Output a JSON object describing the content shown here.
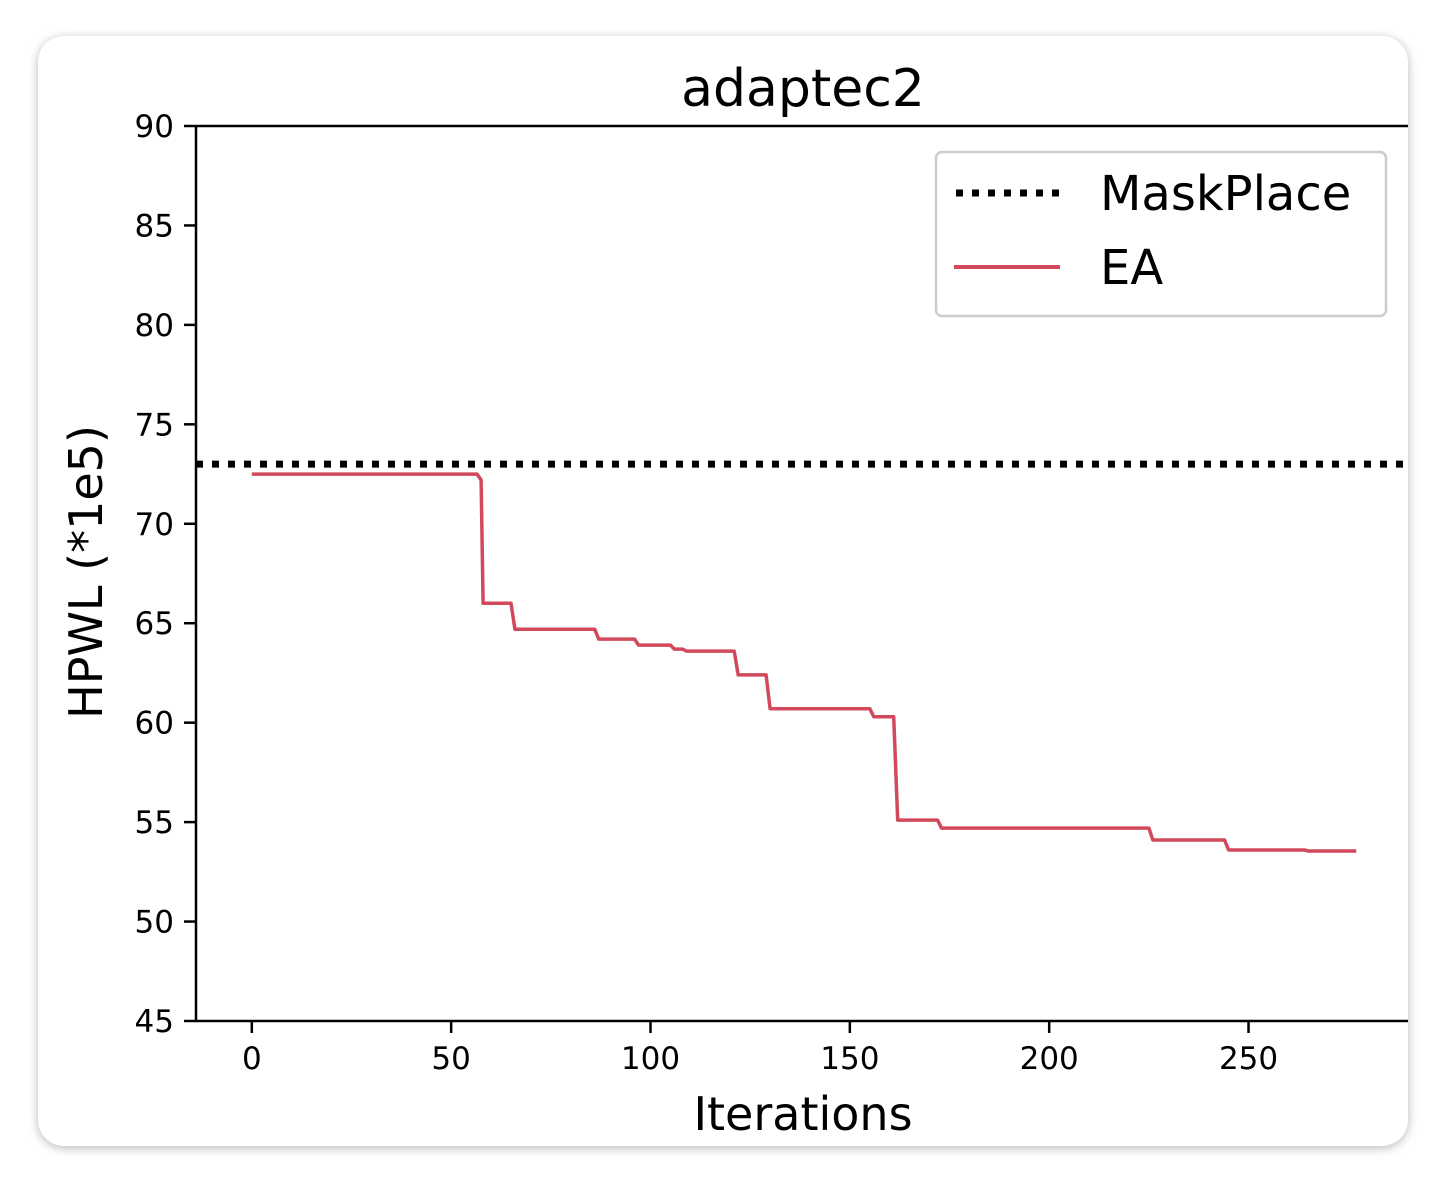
{
  "chart_data": {
    "type": "line",
    "title": "adaptec2",
    "xlabel": "Iterations",
    "ylabel": "HPWL (*1e5)",
    "xlim": [
      -14,
      290
    ],
    "ylim": [
      45,
      90
    ],
    "xticks": [
      0,
      50,
      100,
      150,
      200,
      250
    ],
    "yticks": [
      45,
      50,
      55,
      60,
      65,
      70,
      75,
      80,
      85,
      90
    ],
    "grid": false,
    "legend_position": "top-right",
    "series": [
      {
        "name": "MaskPlace",
        "style": "dotted",
        "color": "#000000",
        "x": [
          -14,
          290
        ],
        "y": [
          73.0,
          73.0
        ]
      },
      {
        "name": "EA",
        "style": "solid",
        "color": "#d1495b",
        "x": [
          0,
          56.5,
          57.5,
          58,
          65,
          66,
          86,
          87,
          96,
          97,
          105,
          106,
          108,
          109,
          121,
          122,
          129,
          130,
          155,
          156,
          161,
          162,
          172,
          173,
          225,
          226,
          244,
          245,
          264,
          265,
          277
        ],
        "y": [
          72.5,
          72.5,
          72.2,
          66.0,
          66.0,
          64.7,
          64.7,
          64.2,
          64.2,
          63.9,
          63.9,
          63.7,
          63.7,
          63.6,
          63.6,
          62.4,
          62.4,
          60.7,
          60.7,
          60.3,
          60.3,
          55.1,
          55.1,
          54.7,
          54.7,
          54.1,
          54.1,
          53.6,
          53.6,
          53.55,
          53.55
        ]
      }
    ]
  }
}
